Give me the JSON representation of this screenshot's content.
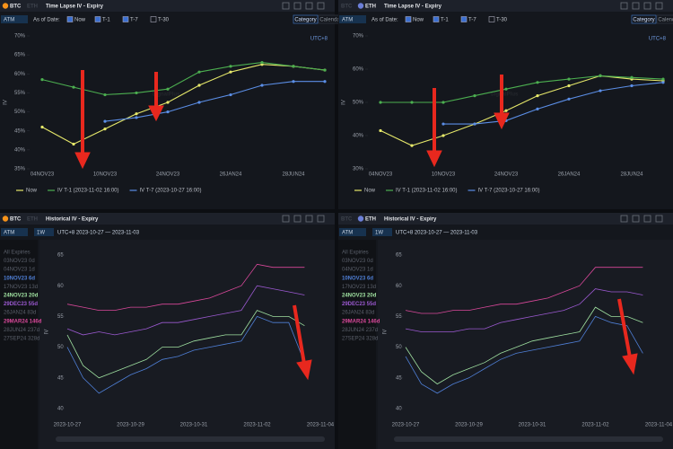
{
  "panels": [
    {
      "tabs": [
        "BTC",
        "ETH"
      ],
      "active_tab": 0,
      "title": "Time Lapse IV - Expiry",
      "selector": "ATM",
      "as_of": "As of Date:",
      "options": [
        "Now",
        "T-1",
        "T-7",
        "T-30"
      ],
      "checked": [
        true,
        true,
        true,
        false
      ],
      "buttons": [
        "Category",
        "Calendar"
      ],
      "timezone": "UTC+8",
      "watermark": "SignalPlus"
    },
    {
      "tabs": [
        "BTC",
        "ETH"
      ],
      "active_tab": 1,
      "title": "Time Lapse IV - Expiry",
      "selector": "ATM",
      "as_of": "As of Date:",
      "options": [
        "Now",
        "T-1",
        "T-7",
        "T-30"
      ],
      "checked": [
        true,
        true,
        true,
        false
      ],
      "buttons": [
        "Category",
        "Calendar"
      ],
      "timezone": "UTC+8",
      "watermark": "SignalPlus"
    },
    {
      "tabs": [
        "BTC",
        "ETH"
      ],
      "active_tab": 0,
      "title": "Historical IV - Expiry",
      "selector": "ATM",
      "period": "1W",
      "range": "UTC+8 2023-10-27 — 2023-11-03",
      "watermark": "SignalPlus"
    },
    {
      "tabs": [
        "BTC",
        "ETH"
      ],
      "active_tab": 1,
      "title": "Historical IV - Expiry",
      "selector": "ATM",
      "period": "1W",
      "range": "UTC+8 2023-10-27 — 2023-11-03",
      "watermark": "SignalPlus"
    }
  ],
  "chart_data": [
    {
      "type": "line",
      "y_label": "IV",
      "categories": [
        "04NOV23",
        null,
        "10NOV23",
        null,
        "24NOV23",
        null,
        "26JAN24",
        null,
        "28JUN24",
        null
      ],
      "series": [
        {
          "name": "Now",
          "color": "#e6e86a",
          "values": [
            46,
            41.5,
            45.5,
            49.5,
            52.5,
            57,
            60.5,
            62.5,
            62,
            61
          ]
        },
        {
          "name": "IV T-1 (2023-11-02 16:00)",
          "color": "#4caf50",
          "values": [
            58.5,
            56.5,
            54.5,
            55,
            56,
            60.5,
            62,
            63,
            62,
            61
          ]
        },
        {
          "name": "IV T-7 (2023-10-27 16:00)",
          "color": "#5b8ee6",
          "values": [
            null,
            null,
            47.5,
            48.5,
            50,
            52.5,
            54.5,
            57,
            58,
            58
          ]
        }
      ],
      "ylim": [
        35,
        70
      ],
      "yticks": [
        {
          "value": 35,
          "label": "35%"
        },
        {
          "value": 40,
          "label": "40%"
        },
        {
          "value": 45,
          "label": "45%"
        },
        {
          "value": 50,
          "label": "50%"
        },
        {
          "value": 55,
          "label": "55%"
        },
        {
          "value": 60,
          "label": "60%"
        },
        {
          "value": 65,
          "label": "65%"
        },
        {
          "value": 70,
          "label": "70%"
        }
      ]
    },
    {
      "type": "line",
      "y_label": "IV",
      "categories": [
        "04NOV23",
        null,
        "10NOV23",
        null,
        "24NOV23",
        null,
        "26JAN24",
        null,
        "28JUN24",
        null
      ],
      "series": [
        {
          "name": "Now",
          "color": "#e6e86a",
          "values": [
            41.5,
            37,
            40,
            43.5,
            47.5,
            52,
            55,
            58,
            57,
            56.5
          ]
        },
        {
          "name": "IV T-1 (2023-11-02 16:00)",
          "color": "#4caf50",
          "values": [
            50,
            50,
            50,
            52,
            54,
            56,
            57,
            58,
            57.5,
            57
          ]
        },
        {
          "name": "IV T-7 (2023-10-27 16:00)",
          "color": "#5b8ee6",
          "values": [
            null,
            null,
            43.5,
            43.5,
            44.5,
            48,
            51,
            53.5,
            55,
            56
          ]
        }
      ],
      "ylim": [
        30,
        70
      ],
      "yticks": [
        {
          "value": 30,
          "label": "30%"
        },
        {
          "value": 40,
          "label": "40%"
        },
        {
          "value": 50,
          "label": "50%"
        },
        {
          "value": 60,
          "label": "60%"
        },
        {
          "value": 70,
          "label": "70%"
        }
      ]
    },
    {
      "type": "line",
      "y_label": "IV",
      "legend_title": "All Expiries",
      "categories": [
        "2023-10-27",
        null,
        null,
        null,
        "2023-10-29",
        null,
        null,
        null,
        "2023-10-31",
        null,
        null,
        null,
        "2023-11-02",
        null,
        null,
        null,
        "2023-11-04"
      ],
      "series": [
        {
          "name": "03NOV23 0d",
          "color": "#5a5f6a"
        },
        {
          "name": "04NOV23 1d",
          "color": "#5a5f6a"
        },
        {
          "name": "10NOV23 6d",
          "color": "#4f7fd6",
          "values": [
            50,
            45,
            42.5,
            44,
            45.5,
            46.5,
            48,
            48.5,
            49.5,
            50,
            50.5,
            51,
            55,
            54,
            54,
            47.5,
            null
          ]
        },
        {
          "name": "17NOV23 13d",
          "color": "#5a5f6a"
        },
        {
          "name": "24NOV23 20d",
          "color": "#9fe0a0",
          "values": [
            52,
            47,
            45,
            46,
            47,
            48,
            50,
            50,
            51,
            51.5,
            52,
            52,
            56,
            55,
            55,
            53.5,
            null
          ]
        },
        {
          "name": "29DEC23 55d",
          "color": "#9b59d0",
          "values": [
            53,
            52,
            52.5,
            52,
            52.5,
            53,
            54,
            54,
            54.5,
            55,
            55.5,
            56,
            60,
            59.5,
            59,
            58.5,
            null
          ]
        },
        {
          "name": "26JAN24 83d",
          "color": "#5a5f6a"
        },
        {
          "name": "29MAR24 146d",
          "color": "#d9489a",
          "values": [
            57,
            56.5,
            56,
            56,
            56.5,
            56.5,
            57,
            57,
            57.5,
            58,
            59,
            60,
            63.5,
            63,
            63,
            63,
            null
          ]
        },
        {
          "name": "28JUN24 237d",
          "color": "#5a5f6a"
        },
        {
          "name": "27SEP24 328d",
          "color": "#5a5f6a"
        }
      ],
      "ylim": [
        40,
        65
      ],
      "yticks": [
        40,
        45,
        50,
        55,
        60,
        65
      ]
    },
    {
      "type": "line",
      "y_label": "IV",
      "legend_title": "All Expiries",
      "categories": [
        "2023-10-27",
        null,
        null,
        null,
        "2023-10-29",
        null,
        null,
        null,
        "2023-10-31",
        null,
        null,
        null,
        "2023-11-02",
        null,
        null,
        null,
        "2023-11-04"
      ],
      "series": [
        {
          "name": "03NOV23 0d",
          "color": "#5a5f6a"
        },
        {
          "name": "04NOV23 1d",
          "color": "#5a5f6a"
        },
        {
          "name": "10NOV23 6d",
          "color": "#4f7fd6",
          "values": [
            48.5,
            44,
            42.5,
            44,
            45,
            46.5,
            48,
            49,
            49.5,
            50,
            50.5,
            51,
            55,
            54,
            53.5,
            49,
            null
          ]
        },
        {
          "name": "17NOV23 13d",
          "color": "#5a5f6a"
        },
        {
          "name": "24NOV23 20d",
          "color": "#9fe0a0",
          "values": [
            50,
            46,
            44,
            45.5,
            46.5,
            47.5,
            49,
            50,
            51,
            51.5,
            52,
            52.5,
            56.5,
            55,
            55,
            54,
            null
          ]
        },
        {
          "name": "29DEC23 55d",
          "color": "#9b59d0",
          "values": [
            53,
            52.5,
            52.5,
            52.5,
            53,
            53,
            54,
            54.5,
            55,
            55.5,
            56,
            57,
            59.5,
            59,
            59,
            58.5,
            null
          ]
        },
        {
          "name": "26JAN24 83d",
          "color": "#5a5f6a"
        },
        {
          "name": "29MAR24 146d",
          "color": "#d9489a",
          "values": [
            56,
            55.5,
            55.5,
            56,
            56,
            56.5,
            57,
            57,
            57.5,
            58,
            59,
            60,
            63,
            63,
            63,
            63,
            null
          ]
        },
        {
          "name": "28JUN24 237d",
          "color": "#5a5f6a"
        },
        {
          "name": "27SEP24 328d",
          "color": "#5a5f6a"
        }
      ],
      "ylim": [
        40,
        65
      ],
      "yticks": [
        40,
        45,
        50,
        55,
        60,
        65
      ]
    }
  ]
}
